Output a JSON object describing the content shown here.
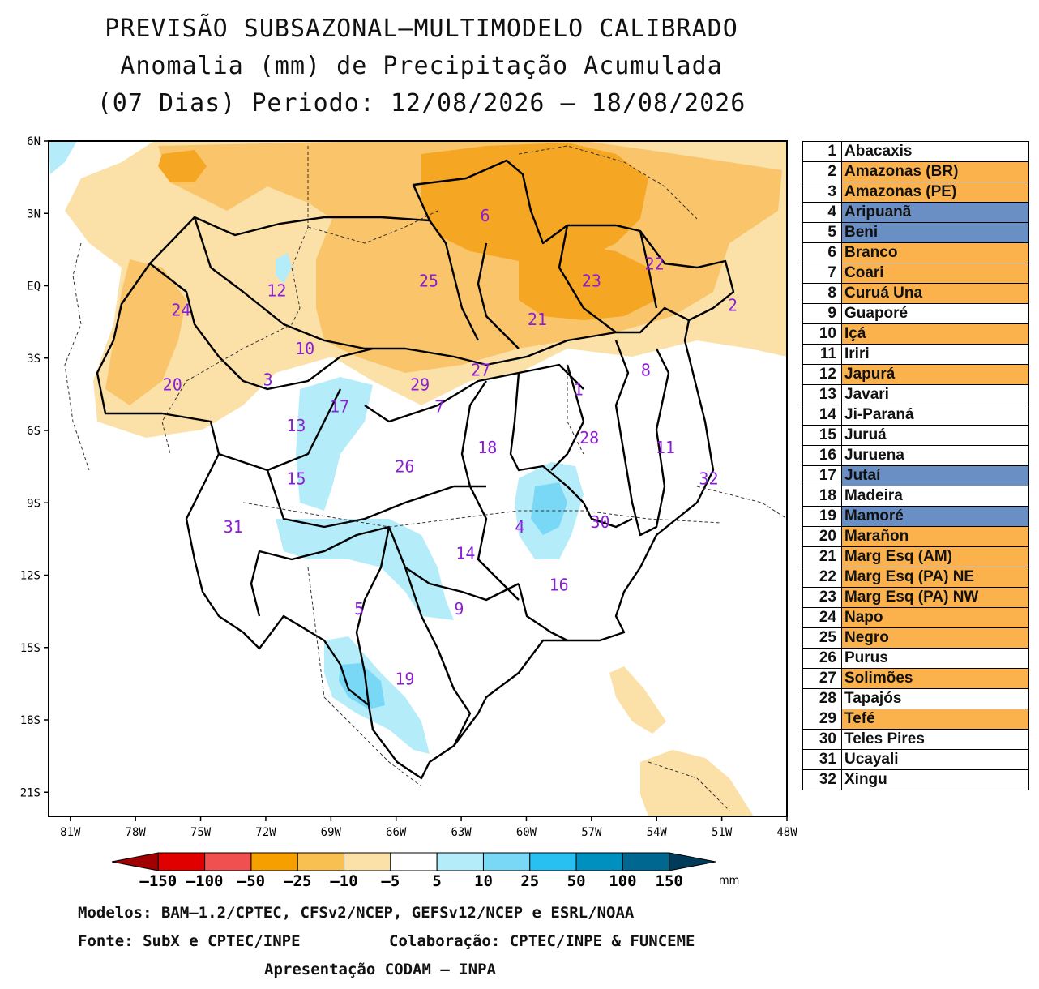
{
  "title": {
    "line1": "PREVISÃO SUBSAZONAL–MULTIMODELO CALIBRADO",
    "line2": "Anomalia (mm) de Precipitação Acumulada",
    "line3": "(07 Dias) Periodo: 12/08/2026 – 18/08/2026"
  },
  "map": {
    "lat_labels": [
      "6N",
      "3N",
      "EQ",
      "3S",
      "6S",
      "9S",
      "12S",
      "15S",
      "18S",
      "21S"
    ],
    "lon_labels": [
      "81W",
      "78W",
      "75W",
      "72W",
      "69W",
      "66W",
      "63W",
      "60W",
      "57W",
      "54W",
      "51W",
      "48W"
    ],
    "basin_labels": [
      {
        "id": "6",
        "lon": -61.9,
        "lat": 2.9
      },
      {
        "id": "22",
        "lon": -54.1,
        "lat": 0.9
      },
      {
        "id": "12",
        "lon": -71.5,
        "lat": -0.2
      },
      {
        "id": "25",
        "lon": -64.5,
        "lat": 0.2
      },
      {
        "id": "23",
        "lon": -57.0,
        "lat": 0.2
      },
      {
        "id": "2",
        "lon": -50.5,
        "lat": -0.8
      },
      {
        "id": "24",
        "lon": -75.9,
        "lat": -1.0
      },
      {
        "id": "21",
        "lon": -59.5,
        "lat": -1.4
      },
      {
        "id": "10",
        "lon": -70.2,
        "lat": -2.6
      },
      {
        "id": "20",
        "lon": -76.3,
        "lat": -4.1
      },
      {
        "id": "3",
        "lon": -71.9,
        "lat": -3.9
      },
      {
        "id": "29",
        "lon": -64.9,
        "lat": -4.1
      },
      {
        "id": "27",
        "lon": -62.1,
        "lat": -3.5
      },
      {
        "id": "8",
        "lon": -54.5,
        "lat": -3.5
      },
      {
        "id": "1",
        "lon": -57.6,
        "lat": -4.3
      },
      {
        "id": "17",
        "lon": -68.6,
        "lat": -5.0
      },
      {
        "id": "7",
        "lon": -64.0,
        "lat": -5.0
      },
      {
        "id": "13",
        "lon": -70.6,
        "lat": -5.8
      },
      {
        "id": "28",
        "lon": -57.1,
        "lat": -6.3
      },
      {
        "id": "18",
        "lon": -61.8,
        "lat": -6.7
      },
      {
        "id": "11",
        "lon": -53.6,
        "lat": -6.7
      },
      {
        "id": "26",
        "lon": -65.6,
        "lat": -7.5
      },
      {
        "id": "15",
        "lon": -70.6,
        "lat": -8.0
      },
      {
        "id": "32",
        "lon": -51.6,
        "lat": -8.0
      },
      {
        "id": "30",
        "lon": -56.6,
        "lat": -9.8
      },
      {
        "id": "31",
        "lon": -73.5,
        "lat": -10.0
      },
      {
        "id": "4",
        "lon": -60.3,
        "lat": -10.0
      },
      {
        "id": "14",
        "lon": -62.8,
        "lat": -11.1
      },
      {
        "id": "16",
        "lon": -58.5,
        "lat": -12.4
      },
      {
        "id": "9",
        "lon": -63.1,
        "lat": -13.4
      },
      {
        "id": "5",
        "lon": -67.7,
        "lat": -13.4
      },
      {
        "id": "19",
        "lon": -65.6,
        "lat": -16.3
      }
    ]
  },
  "colorbar": {
    "labels": [
      "–150",
      "–100",
      "–50",
      "–25",
      "–10",
      "–5",
      "5",
      "10",
      "25",
      "50",
      "100",
      "150"
    ],
    "unit": "mm",
    "colors": [
      "#a00000",
      "#e00000",
      "#f05050",
      "#f5a000",
      "#f8c050",
      "#fbe0a8",
      "#ffffff",
      "#b4ecfa",
      "#78d8f5",
      "#28c0f0",
      "#0090c0",
      "#006890",
      "#003c5a"
    ]
  },
  "legend": [
    {
      "num": "1",
      "name": "Abacaxis",
      "color": "#ffffff"
    },
    {
      "num": "2",
      "name": "Amazonas (BR)",
      "color": "#fbb24c"
    },
    {
      "num": "3",
      "name": "Amazonas (PE)",
      "color": "#fbb24c"
    },
    {
      "num": "4",
      "name": "Aripuanã",
      "color": "#6a8fc4"
    },
    {
      "num": "5",
      "name": "Beni",
      "color": "#6a8fc4"
    },
    {
      "num": "6",
      "name": "Branco",
      "color": "#fbb24c"
    },
    {
      "num": "7",
      "name": "Coari",
      "color": "#fbb24c"
    },
    {
      "num": "8",
      "name": "Curuá Una",
      "color": "#fbb24c"
    },
    {
      "num": "9",
      "name": "Guaporé",
      "color": "#ffffff"
    },
    {
      "num": "10",
      "name": "Içá",
      "color": "#fbb24c"
    },
    {
      "num": "11",
      "name": "Iriri",
      "color": "#ffffff"
    },
    {
      "num": "12",
      "name": "Japurá",
      "color": "#fbb24c"
    },
    {
      "num": "13",
      "name": "Javari",
      "color": "#ffffff"
    },
    {
      "num": "14",
      "name": "Ji-Paraná",
      "color": "#ffffff"
    },
    {
      "num": "15",
      "name": "Juruá",
      "color": "#ffffff"
    },
    {
      "num": "16",
      "name": "Juruena",
      "color": "#ffffff"
    },
    {
      "num": "17",
      "name": "Jutaí",
      "color": "#6a8fc4"
    },
    {
      "num": "18",
      "name": "Madeira",
      "color": "#ffffff"
    },
    {
      "num": "19",
      "name": "Mamoré",
      "color": "#6a8fc4"
    },
    {
      "num": "20",
      "name": "Marañon",
      "color": "#fbb24c"
    },
    {
      "num": "21",
      "name": "Marg Esq (AM)",
      "color": "#fbb24c"
    },
    {
      "num": "22",
      "name": "Marg Esq (PA) NE",
      "color": "#fbb24c"
    },
    {
      "num": "23",
      "name": "Marg Esq (PA) NW",
      "color": "#fbb24c"
    },
    {
      "num": "24",
      "name": "Napo",
      "color": "#fbb24c"
    },
    {
      "num": "25",
      "name": "Negro",
      "color": "#fbb24c"
    },
    {
      "num": "26",
      "name": "Purus",
      "color": "#ffffff"
    },
    {
      "num": "27",
      "name": "Solimões",
      "color": "#fbb24c"
    },
    {
      "num": "28",
      "name": "Tapajós",
      "color": "#ffffff"
    },
    {
      "num": "29",
      "name": "Tefé",
      "color": "#fbb24c"
    },
    {
      "num": "30",
      "name": "Teles Pires",
      "color": "#ffffff"
    },
    {
      "num": "31",
      "name": "Ucayali",
      "color": "#ffffff"
    },
    {
      "num": "32",
      "name": "Xingu",
      "color": "#ffffff"
    }
  ],
  "footer": {
    "models": "Modelos: BAM–1.2/CPTEC, CFSv2/NCEP, GEFSv12/NCEP e ESRL/NOAA",
    "source": "Fonte: SubX e CPTEC/INPE",
    "collab": "Colaboração: CPTEC/INPE & FUNCEME",
    "presentation": "Apresentação CODAM – INPA"
  }
}
